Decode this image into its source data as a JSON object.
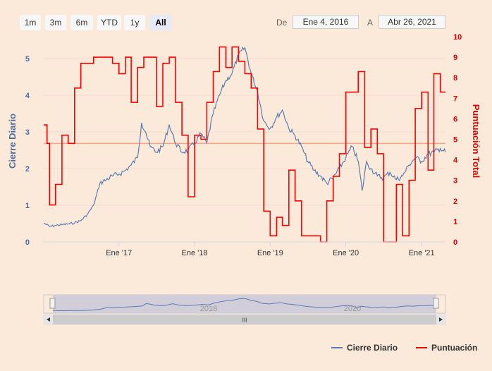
{
  "range_selector": {
    "buttons": [
      {
        "label": "1m",
        "active": false
      },
      {
        "label": "3m",
        "active": false
      },
      {
        "label": "6m",
        "active": false
      },
      {
        "label": "YTD",
        "active": false
      },
      {
        "label": "1y",
        "active": false
      },
      {
        "label": "All",
        "active": true
      }
    ],
    "from_label": "De",
    "from_value": "Ene 4, 2016",
    "to_label": "A",
    "to_value": "Abr 26, 2021"
  },
  "navigator": {
    "labels": [
      "2018",
      "2020"
    ],
    "scroll_grip": "III"
  },
  "colors": {
    "price": "#5b7db5",
    "score": "#ff0000",
    "threshold": "#f4a582",
    "background": "#fbe9da"
  },
  "chart_data": {
    "type": "line",
    "x_tick_labels": [
      "Ene '17",
      "Ene '18",
      "Ene '19",
      "Ene '20",
      "Ene '21"
    ],
    "y_left": {
      "label": "Cierre Diario",
      "ticks": [
        "0",
        "1",
        "2",
        "3",
        "4",
        "5"
      ],
      "range": [
        0,
        5.6
      ]
    },
    "y_right": {
      "label": "Puntuación Total",
      "ticks": [
        "0",
        "1",
        "2",
        "3",
        "4",
        "5",
        "6",
        "7",
        "8",
        "9",
        "10"
      ],
      "range": [
        0,
        10
      ]
    },
    "x_range": [
      "2016-01-04",
      "2021-04-26"
    ],
    "threshold_line": {
      "axis": "right",
      "value": 4.8
    },
    "series": [
      {
        "name": "Cierre Diario",
        "axis": "left",
        "points": [
          [
            "2016-01-04",
            0.52
          ],
          [
            "2016-02-01",
            0.42
          ],
          [
            "2016-03-01",
            0.45
          ],
          [
            "2016-04-01",
            0.47
          ],
          [
            "2016-05-01",
            0.49
          ],
          [
            "2016-06-01",
            0.52
          ],
          [
            "2016-07-01",
            0.58
          ],
          [
            "2016-08-01",
            0.75
          ],
          [
            "2016-09-01",
            1.0
          ],
          [
            "2016-10-01",
            1.6
          ],
          [
            "2016-11-01",
            1.7
          ],
          [
            "2016-12-01",
            1.8
          ],
          [
            "2017-01-01",
            1.85
          ],
          [
            "2017-02-01",
            1.95
          ],
          [
            "2017-03-01",
            2.1
          ],
          [
            "2017-04-01",
            2.3
          ],
          [
            "2017-04-20",
            3.25
          ],
          [
            "2017-05-10",
            3.0
          ],
          [
            "2017-06-01",
            2.6
          ],
          [
            "2017-07-01",
            2.45
          ],
          [
            "2017-08-01",
            2.6
          ],
          [
            "2017-09-01",
            3.2
          ],
          [
            "2017-10-01",
            2.7
          ],
          [
            "2017-11-01",
            2.45
          ],
          [
            "2017-12-01",
            2.5
          ],
          [
            "2018-01-01",
            2.7
          ],
          [
            "2018-02-01",
            2.95
          ],
          [
            "2018-03-01",
            2.7
          ],
          [
            "2018-04-01",
            3.5
          ],
          [
            "2018-05-01",
            4.0
          ],
          [
            "2018-06-01",
            4.4
          ],
          [
            "2018-07-01",
            4.6
          ],
          [
            "2018-08-01",
            5.1
          ],
          [
            "2018-09-01",
            5.3
          ],
          [
            "2018-10-01",
            4.6
          ],
          [
            "2018-11-01",
            4.1
          ],
          [
            "2018-12-01",
            3.3
          ],
          [
            "2019-01-01",
            3.1
          ],
          [
            "2019-02-01",
            3.4
          ],
          [
            "2019-03-01",
            3.6
          ],
          [
            "2019-04-01",
            3.1
          ],
          [
            "2019-05-01",
            2.9
          ],
          [
            "2019-06-01",
            2.6
          ],
          [
            "2019-07-01",
            2.2
          ],
          [
            "2019-08-01",
            1.95
          ],
          [
            "2019-09-01",
            1.8
          ],
          [
            "2019-10-01",
            1.6
          ],
          [
            "2019-11-01",
            1.75
          ],
          [
            "2019-12-01",
            2.0
          ],
          [
            "2020-01-01",
            2.3
          ],
          [
            "2020-02-01",
            2.6
          ],
          [
            "2020-03-01",
            2.2
          ],
          [
            "2020-03-20",
            1.4
          ],
          [
            "2020-04-10",
            2.2
          ],
          [
            "2020-05-01",
            2.0
          ],
          [
            "2020-06-01",
            1.8
          ],
          [
            "2020-07-01",
            1.75
          ],
          [
            "2020-08-01",
            1.9
          ],
          [
            "2020-09-01",
            1.7
          ],
          [
            "2020-10-01",
            1.8
          ],
          [
            "2020-11-01",
            2.1
          ],
          [
            "2020-12-01",
            2.3
          ],
          [
            "2021-01-01",
            2.2
          ],
          [
            "2021-02-01",
            2.4
          ],
          [
            "2021-03-01",
            2.45
          ],
          [
            "2021-04-01",
            2.55
          ],
          [
            "2021-04-26",
            2.45
          ]
        ]
      },
      {
        "name": "Puntuación",
        "axis": "right",
        "steps": [
          [
            "2016-01-04",
            5.7
          ],
          [
            "2016-01-20",
            4.8
          ],
          [
            "2016-02-01",
            1.8
          ],
          [
            "2016-03-01",
            2.8
          ],
          [
            "2016-04-01",
            5.2
          ],
          [
            "2016-05-01",
            4.8
          ],
          [
            "2016-06-01",
            7.5
          ],
          [
            "2016-07-01",
            8.7
          ],
          [
            "2016-09-01",
            9
          ],
          [
            "2016-12-01",
            8.7
          ],
          [
            "2017-01-01",
            8.2
          ],
          [
            "2017-02-01",
            9
          ],
          [
            "2017-03-01",
            6.8
          ],
          [
            "2017-04-01",
            8.5
          ],
          [
            "2017-05-01",
            9
          ],
          [
            "2017-07-01",
            6.6
          ],
          [
            "2017-08-01",
            8.7
          ],
          [
            "2017-09-01",
            9
          ],
          [
            "2017-10-01",
            6.8
          ],
          [
            "2017-11-01",
            5.2
          ],
          [
            "2017-12-01",
            2.2
          ],
          [
            "2018-01-01",
            5.2
          ],
          [
            "2018-02-01",
            5
          ],
          [
            "2018-03-01",
            6.8
          ],
          [
            "2018-04-01",
            8.3
          ],
          [
            "2018-05-01",
            9.5
          ],
          [
            "2018-06-01",
            8.5
          ],
          [
            "2018-07-01",
            9.5
          ],
          [
            "2018-08-01",
            8.8
          ],
          [
            "2018-09-01",
            8.2
          ],
          [
            "2018-10-01",
            7.5
          ],
          [
            "2018-11-01",
            5.5
          ],
          [
            "2018-12-01",
            1.5
          ],
          [
            "2019-01-01",
            0.3
          ],
          [
            "2019-02-01",
            1.2
          ],
          [
            "2019-03-01",
            0.8
          ],
          [
            "2019-04-01",
            3.5
          ],
          [
            "2019-05-01",
            2
          ],
          [
            "2019-06-01",
            0.3
          ],
          [
            "2019-09-01",
            0
          ],
          [
            "2019-10-01",
            2
          ],
          [
            "2019-11-01",
            3.2
          ],
          [
            "2019-12-01",
            4.3
          ],
          [
            "2020-01-01",
            7.3
          ],
          [
            "2020-03-01",
            8.3
          ],
          [
            "2020-04-01",
            4.6
          ],
          [
            "2020-05-01",
            5.5
          ],
          [
            "2020-06-01",
            4.3
          ],
          [
            "2020-07-01",
            0
          ],
          [
            "2020-09-01",
            2.8
          ],
          [
            "2020-10-01",
            0.3
          ],
          [
            "2020-11-01",
            3
          ],
          [
            "2020-12-01",
            6.5
          ],
          [
            "2021-01-01",
            7.3
          ],
          [
            "2021-02-01",
            3.5
          ],
          [
            "2021-03-01",
            8.2
          ],
          [
            "2021-04-01",
            7.3
          ],
          [
            "2021-04-26",
            7.3
          ]
        ]
      }
    ],
    "legend": [
      "Cierre Diario",
      "Puntuación"
    ]
  }
}
